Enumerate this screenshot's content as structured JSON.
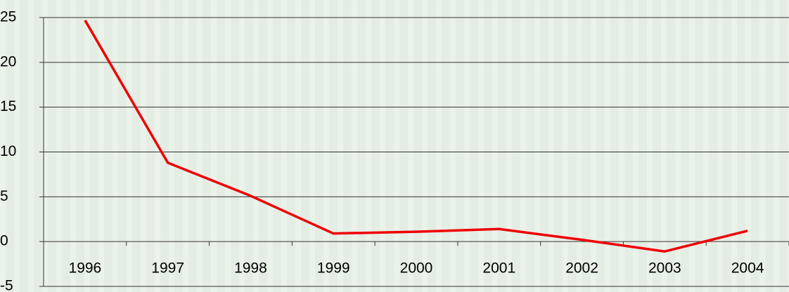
{
  "chart_data": {
    "type": "line",
    "categories": [
      "1996",
      "1997",
      "1998",
      "1999",
      "2000",
      "2001",
      "2002",
      "2003",
      "2004"
    ],
    "series": [
      {
        "name": null,
        "color": "#ee0000",
        "values": [
          24.7,
          8.8,
          5.1,
          0.9,
          1.1,
          1.4,
          0.2,
          -1.1,
          1.2
        ]
      }
    ],
    "ylim": [
      -5,
      25
    ],
    "yticks": [
      -5,
      0,
      5,
      10,
      15,
      20,
      25
    ],
    "grid": true
  }
}
